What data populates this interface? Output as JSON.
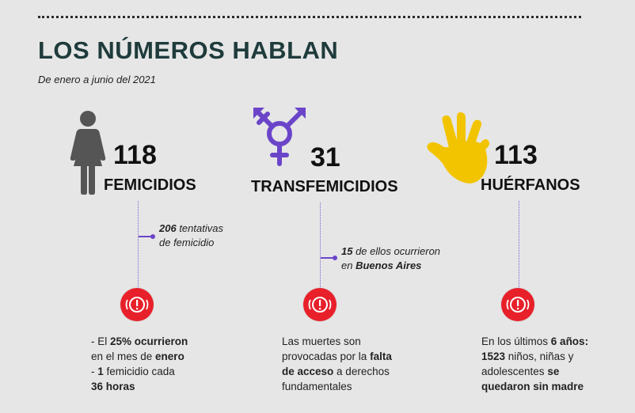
{
  "header": {
    "title": "LOS NÚMEROS HABLAN",
    "subtitle": "De enero a junio del 2021"
  },
  "stats": [
    {
      "number": "118",
      "label": "FEMICIDIOS",
      "icon": "woman-icon",
      "note_bold": "206",
      "note_rest_1": " tentativas",
      "note_line_2": "de femicidio",
      "desc": {
        "l1a": "- El ",
        "l1b": "25% ocurrieron",
        "l2a": "en el mes de ",
        "l2b": "enero",
        "l3a": "- ",
        "l3b": "1",
        "l3c": " femicidio cada",
        "l4": "36 horas"
      }
    },
    {
      "number": "31",
      "label": "TRANSFEMICIDIOS",
      "icon": "transgender-symbol-icon",
      "note_bold": "15",
      "note_rest_1": " de ellos ocurrieron",
      "note_line_2a": "en ",
      "note_line_2b": "Buenos Aires",
      "desc": {
        "l1": "Las muertes son",
        "l2a": "provocadas por la ",
        "l2b": "falta",
        "l3a": "de acceso",
        "l3b": " a derechos",
        "l4": "fundamentales"
      }
    },
    {
      "number": "113",
      "label": "HUÉRFANOS",
      "icon": "hand-icon",
      "desc": {
        "l1a": "En los últimos ",
        "l1b": "6 años:",
        "l2a": "1523",
        "l2b": " niños, niñas y",
        "l3a": "adolescentes ",
        "l3b": "se",
        "l4": "quedaron sin madre"
      }
    }
  ],
  "colors": {
    "background": "#e6e6e6",
    "title": "#1f3b3b",
    "accent_purple": "#6b45c9",
    "alarm_red": "#e8202a",
    "woman_gray": "#555555",
    "hand_yellow": "#f2c400"
  }
}
